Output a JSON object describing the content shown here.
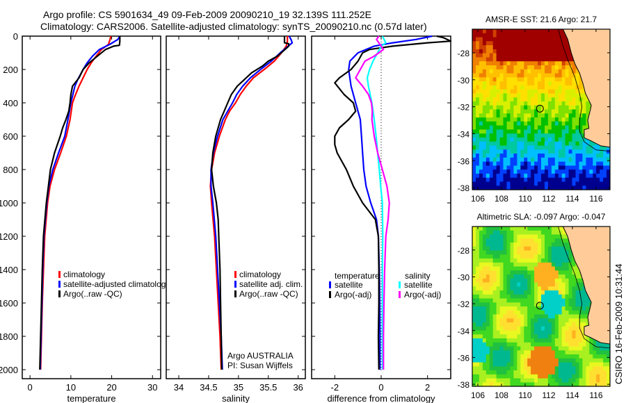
{
  "title_line1": "Argo profile: CS 5901634_49 09-Feb-2009 20090210_19 32.139S 111.252E",
  "title_line2": "Climatology: CARS2006. Satellite-adjusted climatology: synTS_20090210.nc (0.57d later)",
  "side_label": "CSIRO 16-Feb-2009 10:31:44",
  "colors": {
    "climatology": "#ff0000",
    "satellite": "#0000ff",
    "argo": "#000000",
    "sal_satellite": "#00ffff",
    "sal_argo": "#ff00ff",
    "land": "#ffcc99"
  },
  "chart_data": [
    {
      "type": "line",
      "name": "temperature-profile",
      "xlabel": "temperature",
      "ylabel": "",
      "xlim": [
        -1.9,
        32
      ],
      "ylim": [
        2054,
        0
      ],
      "xticks": [
        0,
        10,
        20,
        30
      ],
      "yticks": [
        0,
        200,
        400,
        600,
        800,
        1000,
        1200,
        1400,
        1600,
        1800,
        2000
      ],
      "legend": [
        "climatology",
        "satellite-adjusted climatology",
        "Argo(..raw -QC)"
      ],
      "legend_position": "bottom-right",
      "series": [
        {
          "name": "climatology",
          "color": "#ff0000",
          "depth": [
            0,
            20,
            50,
            80,
            120,
            160,
            200,
            260,
            300,
            360,
            400,
            500,
            600,
            700,
            800,
            900,
            1000,
            1200,
            1400,
            1600,
            1800,
            2000
          ],
          "values": [
            19.8,
            19.6,
            19.2,
            17.5,
            16.2,
            15.0,
            14.0,
            12.8,
            12.0,
            11.0,
            10.4,
            9.8,
            8.9,
            7.5,
            6.0,
            4.9,
            4.3,
            3.6,
            3.3,
            3.0,
            2.8,
            2.6
          ]
        },
        {
          "name": "satellite-adjusted climatology",
          "color": "#0000ff",
          "depth": [
            0,
            20,
            50,
            80,
            120,
            160,
            200,
            260,
            300,
            360,
            400,
            500,
            600,
            700,
            800,
            900,
            1000,
            1200,
            1400,
            1600,
            1800,
            2000
          ],
          "values": [
            22.0,
            21.5,
            19.5,
            17.0,
            15.3,
            14.0,
            13.0,
            11.7,
            11.0,
            10.4,
            10.0,
            9.3,
            8.5,
            7.0,
            5.6,
            4.6,
            4.1,
            3.4,
            3.1,
            2.9,
            2.7,
            2.5
          ]
        },
        {
          "name": "Argo(..raw -QC)",
          "color": "#000000",
          "depth": [
            0,
            30,
            55,
            60,
            80,
            120,
            160,
            200,
            250,
            300,
            350,
            400,
            450,
            500,
            550,
            600,
            650,
            700,
            800,
            900,
            1000,
            1200,
            1400,
            1600,
            1800,
            2000
          ],
          "values": [
            22.0,
            22.0,
            21.9,
            20.5,
            18.5,
            16.5,
            14.5,
            13.0,
            12.0,
            10.4,
            10.0,
            9.8,
            9.5,
            8.8,
            8.0,
            7.4,
            6.7,
            6.0,
            5.0,
            4.5,
            4.0,
            3.3,
            3.0,
            2.8,
            2.6,
            2.4
          ]
        }
      ]
    },
    {
      "type": "line",
      "name": "salinity-profile",
      "xlabel": "salinity",
      "ylabel": "",
      "xlim": [
        33.79,
        36.12
      ],
      "ylim": [
        2054,
        0
      ],
      "xticks": [
        34,
        34.5,
        35,
        35.5,
        36
      ],
      "legend": [
        "climatology",
        "satellite adj. clim.",
        "Argo(..raw -QC)"
      ],
      "legend_position": "bottom-right",
      "annotation": [
        "Argo AUSTRALIA",
        "PI: Susan Wijffels"
      ],
      "series": [
        {
          "name": "climatology",
          "color": "#ff0000",
          "depth": [
            0,
            30,
            60,
            100,
            150,
            200,
            250,
            300,
            350,
            400,
            450,
            500,
            600,
            700,
            800,
            900,
            1000,
            1200,
            1400,
            1600,
            1800,
            2000
          ],
          "values": [
            35.82,
            35.82,
            35.8,
            35.72,
            35.6,
            35.43,
            35.25,
            35.13,
            35.03,
            34.95,
            34.85,
            34.78,
            34.68,
            34.6,
            34.55,
            34.53,
            34.55,
            34.6,
            34.63,
            34.66,
            34.69,
            34.71
          ]
        },
        {
          "name": "satellite adj. clim.",
          "color": "#0000ff",
          "depth": [
            0,
            20,
            40,
            70,
            100,
            150,
            200,
            250,
            300,
            350,
            400,
            450,
            500,
            600,
            700,
            800,
            900,
            1000,
            1200,
            1400,
            1600,
            1800,
            2000
          ],
          "values": [
            35.85,
            35.88,
            35.9,
            35.8,
            35.7,
            35.55,
            35.37,
            35.2,
            35.07,
            34.97,
            34.9,
            34.82,
            34.74,
            34.65,
            34.58,
            34.54,
            34.54,
            34.57,
            34.62,
            34.65,
            34.68,
            34.71,
            34.73
          ]
        },
        {
          "name": "Argo(..raw -QC)",
          "color": "#000000",
          "depth": [
            0,
            40,
            45,
            60,
            80,
            120,
            150,
            180,
            220,
            260,
            300,
            350,
            400,
            450,
            500,
            600,
            700,
            800,
            900,
            1000,
            1100,
            1200,
            1400,
            1600,
            1800,
            2000
          ],
          "values": [
            35.77,
            35.77,
            35.84,
            35.84,
            35.78,
            35.65,
            35.5,
            35.4,
            35.22,
            35.1,
            34.98,
            34.88,
            34.82,
            34.76,
            34.7,
            34.62,
            34.57,
            34.55,
            34.58,
            34.63,
            34.66,
            34.67,
            34.69,
            34.7,
            34.71,
            34.72
          ]
        }
      ]
    },
    {
      "type": "line",
      "name": "difference-profile",
      "xlabel": "difference from climatology",
      "ylabel": "",
      "xlim": [
        -3,
        3
      ],
      "ylim": [
        2054,
        0
      ],
      "xticks": [
        -2,
        0,
        2
      ],
      "legend_groups": [
        {
          "title": "temperature",
          "items": [
            "satellite",
            "Argo(-adj)"
          ]
        },
        {
          "title": "salinity",
          "items": [
            "satellite",
            "Argo(-adj)"
          ]
        }
      ],
      "legend_position": "bottom",
      "series": [
        {
          "name": "temperature satellite",
          "color": "#0000ff",
          "depth": [
            0,
            20,
            40,
            60,
            100,
            150,
            200,
            300,
            400,
            500,
            600,
            700,
            800,
            900,
            1000,
            1100,
            1200,
            1400,
            1600,
            1800,
            2000
          ],
          "values": [
            2.2,
            1.5,
            0.5,
            -0.3,
            -1.0,
            -1.35,
            -1.4,
            -1.3,
            -1.1,
            -0.9,
            -0.85,
            -0.8,
            -0.75,
            -0.65,
            -0.45,
            -0.2,
            -0.12,
            -0.08,
            -0.06,
            -0.05,
            -0.05
          ]
        },
        {
          "name": "temperature Argo(-adj)",
          "color": "#000000",
          "depth": [
            0,
            10,
            30,
            40,
            60,
            80,
            100,
            150,
            200,
            250,
            280,
            350,
            400,
            450,
            500,
            550,
            600,
            650,
            700,
            800,
            900,
            1000,
            1100,
            1200,
            1400,
            1600,
            1800,
            2000
          ],
          "values": [
            2.4,
            2.7,
            3.0,
            2.0,
            0.5,
            -0.5,
            -0.8,
            -1.0,
            -1.3,
            -1.8,
            -2.0,
            -1.6,
            -1.2,
            -1.1,
            -1.4,
            -1.8,
            -2.0,
            -2.0,
            -1.9,
            -1.5,
            -1.2,
            -0.8,
            -0.25,
            -0.12,
            -0.1,
            -0.1,
            -0.12,
            -0.1
          ]
        },
        {
          "name": "salinity satellite",
          "color": "#00ffff",
          "depth": [
            0,
            40,
            60,
            100,
            150,
            200,
            250,
            300,
            400,
            500,
            600,
            700,
            800,
            900,
            1000,
            1200,
            1400,
            1600,
            1800,
            2000
          ],
          "values": [
            0.05,
            0.2,
            0.0,
            -0.15,
            -0.35,
            -0.5,
            -0.6,
            -0.55,
            -0.4,
            -0.3,
            -0.22,
            -0.15,
            -0.08,
            -0.02,
            0.05,
            0.07,
            0.05,
            0.05,
            0.05,
            0.06
          ]
        },
        {
          "name": "salinity Argo(-adj)",
          "color": "#ff00ff",
          "depth": [
            0,
            20,
            40,
            60,
            80,
            120,
            150,
            200,
            250,
            300,
            350,
            400,
            450,
            500,
            600,
            700,
            800,
            900,
            1000,
            1100,
            1200,
            1400,
            1600,
            1800,
            2000
          ],
          "values": [
            -0.1,
            -0.2,
            -0.1,
            0.0,
            0.1,
            -0.3,
            -0.7,
            -0.9,
            -1.1,
            -0.8,
            -0.55,
            -0.42,
            -0.38,
            -0.4,
            -0.3,
            -0.15,
            0.05,
            0.25,
            0.35,
            0.3,
            0.2,
            0.15,
            0.12,
            0.1,
            0.1
          ]
        }
      ]
    },
    {
      "type": "heatmap",
      "name": "sst-map",
      "title": "AMSR-E SST: 21.6 Argo: 21.7",
      "xlim": [
        105.53,
        117.18
      ],
      "ylim": [
        -38.15,
        -26.25
      ],
      "xticks": [
        106,
        108,
        110,
        112,
        114,
        116
      ],
      "yticks": [
        -28,
        -30,
        -32,
        -34,
        -36,
        -38
      ],
      "marker": {
        "lon": 111.252,
        "lat": -32.139
      },
      "colorscale": [
        "#00008f",
        "#0040ff",
        "#00bfff",
        "#00c8a0",
        "#00c000",
        "#80e000",
        "#d8f000",
        "#ffe000",
        "#ffc000",
        "#f08000",
        "#d04000",
        "#a00000"
      ]
    },
    {
      "type": "heatmap",
      "name": "sla-map",
      "title": "Altimetric SLA: -0.097 Argo: -0.047",
      "xlim": [
        105.53,
        117.18
      ],
      "ylim": [
        -38.15,
        -26.25
      ],
      "xticks": [
        106,
        108,
        110,
        112,
        114,
        116
      ],
      "yticks": [
        -28,
        -30,
        -32,
        -34,
        -36,
        -38
      ],
      "marker": {
        "lon": 111.252,
        "lat": -32.139
      },
      "colorscale": [
        "#00d0c8",
        "#00b890",
        "#20c040",
        "#40d820",
        "#a8f020",
        "#e8f820",
        "#ffe030",
        "#ffb020",
        "#f08010"
      ]
    }
  ]
}
